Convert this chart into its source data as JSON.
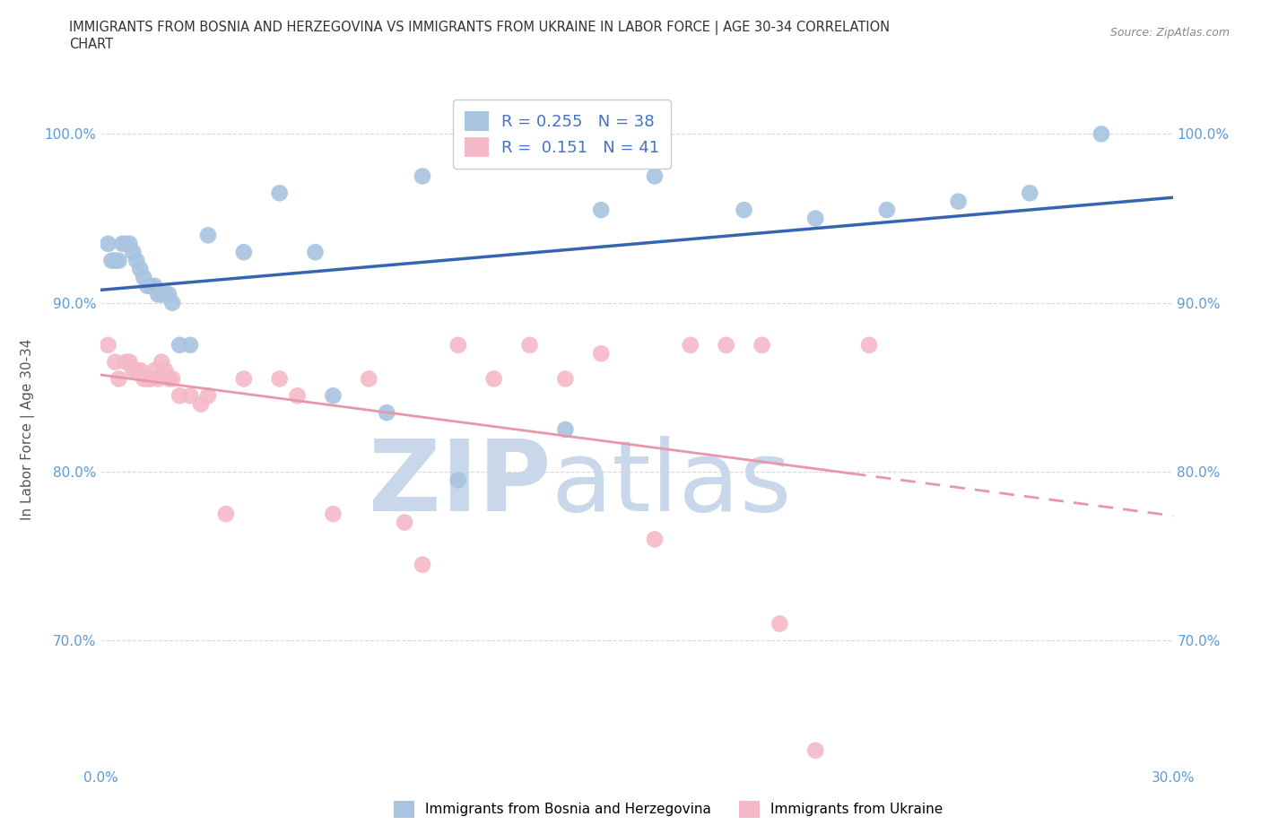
{
  "title_line1": "IMMIGRANTS FROM BOSNIA AND HERZEGOVINA VS IMMIGRANTS FROM UKRAINE IN LABOR FORCE | AGE 30-34 CORRELATION",
  "title_line2": "CHART",
  "source": "Source: ZipAtlas.com",
  "ylabel": "In Labor Force | Age 30-34",
  "xlim": [
    0.0,
    0.3
  ],
  "ylim": [
    0.625,
    1.025
  ],
  "xticks": [
    0.0,
    0.05,
    0.1,
    0.15,
    0.2,
    0.25,
    0.3
  ],
  "yticks": [
    0.7,
    0.8,
    0.9,
    1.0
  ],
  "yticklabels": [
    "70.0%",
    "80.0%",
    "90.0%",
    "100.0%"
  ],
  "blue_R": 0.255,
  "blue_N": 38,
  "pink_R": 0.151,
  "pink_N": 41,
  "blue_color": "#a8c4e0",
  "pink_color": "#f4b8c8",
  "blue_line_color": "#3565b0",
  "pink_line_color": "#e896aa",
  "watermark_zip": "ZIP",
  "watermark_atlas": "atlas",
  "watermark_color": "#c8d8ea",
  "blue_x": [
    0.002,
    0.003,
    0.004,
    0.005,
    0.006,
    0.007,
    0.008,
    0.009,
    0.01,
    0.011,
    0.012,
    0.013,
    0.014,
    0.015,
    0.016,
    0.017,
    0.018,
    0.019,
    0.02,
    0.022,
    0.025,
    0.03,
    0.04,
    0.05,
    0.06,
    0.065,
    0.08,
    0.09,
    0.1,
    0.13,
    0.14,
    0.155,
    0.18,
    0.2,
    0.22,
    0.24,
    0.26,
    0.28
  ],
  "blue_y": [
    0.935,
    0.925,
    0.925,
    0.925,
    0.935,
    0.935,
    0.935,
    0.93,
    0.925,
    0.92,
    0.915,
    0.91,
    0.91,
    0.91,
    0.905,
    0.905,
    0.905,
    0.905,
    0.9,
    0.875,
    0.875,
    0.94,
    0.93,
    0.965,
    0.93,
    0.845,
    0.835,
    0.975,
    0.795,
    0.825,
    0.955,
    0.975,
    0.955,
    0.95,
    0.955,
    0.96,
    0.965,
    1.0
  ],
  "pink_x": [
    0.002,
    0.004,
    0.005,
    0.007,
    0.008,
    0.009,
    0.01,
    0.011,
    0.012,
    0.013,
    0.014,
    0.015,
    0.016,
    0.017,
    0.018,
    0.019,
    0.02,
    0.022,
    0.025,
    0.028,
    0.03,
    0.035,
    0.04,
    0.05,
    0.055,
    0.065,
    0.075,
    0.085,
    0.09,
    0.1,
    0.11,
    0.12,
    0.13,
    0.14,
    0.155,
    0.165,
    0.175,
    0.185,
    0.19,
    0.2,
    0.215
  ],
  "pink_y": [
    0.875,
    0.865,
    0.855,
    0.865,
    0.865,
    0.86,
    0.86,
    0.86,
    0.855,
    0.855,
    0.855,
    0.86,
    0.855,
    0.865,
    0.86,
    0.855,
    0.855,
    0.845,
    0.845,
    0.84,
    0.845,
    0.775,
    0.855,
    0.855,
    0.845,
    0.775,
    0.855,
    0.77,
    0.745,
    0.875,
    0.855,
    0.875,
    0.855,
    0.87,
    0.76,
    0.875,
    0.875,
    0.875,
    0.71,
    0.635,
    0.875
  ],
  "legend_blue_label": "Immigrants from Bosnia and Herzegovina",
  "legend_pink_label": "Immigrants from Ukraine",
  "grid_color": "#d8d8d8"
}
